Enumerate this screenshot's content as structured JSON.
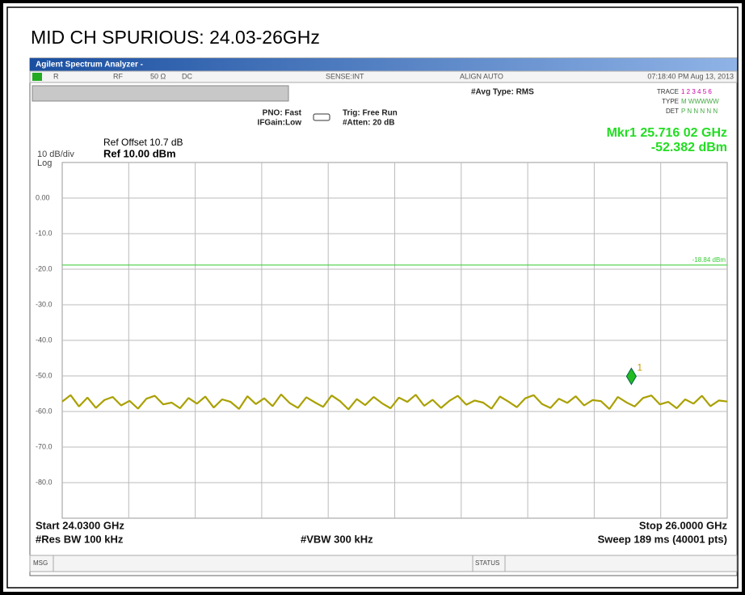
{
  "title": "MID CH SPURIOUS:  24.03-26GHz",
  "window_title": "Agilent Spectrum Analyzer - ",
  "status_bar": {
    "r": "R",
    "rf": "RF",
    "impedance": "50 Ω",
    "coupling": "DC",
    "sense": "SENSE:INT",
    "align": "ALIGN AUTO",
    "datetime": "07:18:40 PM Aug 13, 2013"
  },
  "settings": {
    "pno": "PNO: Fast",
    "ifgain": "IFGain:Low",
    "trig": "Trig: Free Run",
    "atten": "#Atten: 20 dB",
    "avg": "#Avg Type: RMS",
    "trace_label": "TRACE",
    "trace_nums": "1 2 3 4 5 6",
    "type_label": "TYPE",
    "type_val": "M WWWWW",
    "det_label": "DET",
    "det_val": "P N N N N N"
  },
  "ref_offset": "Ref Offset 10.7 dB",
  "ref_level": "Ref 10.00 dBm",
  "scale": "10 dB/div",
  "scale_type": "Log",
  "marker_readout": {
    "freq": "Mkr1 25.716 02 GHz",
    "level": "-52.382 dBm"
  },
  "footer": {
    "start": "Start 24.0300 GHz",
    "stop": "Stop 26.0000 GHz",
    "rbw": "#Res BW 100 kHz",
    "vbw": "#VBW 300 kHz",
    "sweep": "Sweep  189 ms (40001 pts)",
    "msg": "MSG",
    "status": "STATUS"
  },
  "chart_data": {
    "type": "line",
    "xlim": [
      24.03,
      26
    ],
    "ylim": [
      -90,
      10
    ],
    "yticks": [
      {
        "value": 0,
        "label": "0.00"
      },
      {
        "value": -10,
        "label": "-10.0"
      },
      {
        "value": -20,
        "label": "-20.0"
      },
      {
        "value": -30,
        "label": "-30.0"
      },
      {
        "value": -40,
        "label": "-40.0"
      },
      {
        "value": -50,
        "label": "-50.0"
      },
      {
        "value": -60,
        "label": "-60.0"
      },
      {
        "value": -70,
        "label": "-70.0"
      },
      {
        "value": -80,
        "label": "-80.0"
      }
    ],
    "grid": true,
    "display_line": {
      "value": -18.84,
      "label": "-18.84 dBm",
      "color": "#33cc33"
    },
    "marker": {
      "label": "1",
      "x": 25.71602,
      "y": -52.382,
      "color": "#22bb22"
    },
    "series": [
      {
        "name": "Trace 1",
        "color": "#aaa000",
        "values": [
          -57.2,
          -55.4,
          -58.6,
          -56.1,
          -59.0,
          -56.8,
          -55.9,
          -58.3,
          -57.0,
          -59.2,
          -56.4,
          -55.6,
          -58.0,
          -57.5,
          -59.1,
          -56.2,
          -57.8,
          -55.8,
          -58.9,
          -56.6,
          -57.3,
          -59.3,
          -55.7,
          -57.9,
          -56.3,
          -58.5,
          -55.2,
          -57.6,
          -59.0,
          -56.0,
          -57.4,
          -58.7,
          -55.5,
          -57.1,
          -59.4,
          -56.5,
          -58.2,
          -55.9,
          -57.7,
          -59.1,
          -56.1,
          -57.3,
          -55.3,
          -58.4,
          -56.7,
          -59.0,
          -57.0,
          -55.6,
          -58.1,
          -56.9,
          -57.5,
          -59.2,
          -55.8,
          -57.2,
          -58.8,
          -56.3,
          -55.4,
          -57.9,
          -59.0,
          -56.4,
          -57.6,
          -55.7,
          -58.3,
          -56.8,
          -57.1,
          -59.3,
          -55.9,
          -57.4,
          -58.6,
          -56.2,
          -55.5,
          -58.0,
          -57.3,
          -59.1,
          -56.6,
          -57.8,
          -55.6,
          -58.5,
          -56.9,
          -57.2
        ]
      }
    ]
  }
}
